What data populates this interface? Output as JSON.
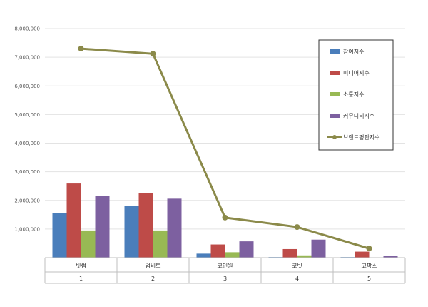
{
  "chart_data": {
    "type": "bar",
    "categories": [
      "빗썸",
      "업비트",
      "코인원",
      "코빗",
      "고팍스"
    ],
    "category_index": [
      "1",
      "2",
      "3",
      "4",
      "5"
    ],
    "ylim": [
      0,
      8000000
    ],
    "y_ticks": [
      0,
      1000000,
      2000000,
      3000000,
      4000000,
      5000000,
      6000000,
      7000000,
      8000000
    ],
    "y_tick_labels": [
      "-",
      "1,000,000",
      "2,000,000",
      "3,000,000",
      "4,000,000",
      "5,000,000",
      "6,000,000",
      "7,000,000",
      "8,000,000"
    ],
    "grid": true,
    "legend_position": "top-right",
    "series": [
      {
        "name": "참여지수",
        "type": "bar",
        "color": "#4a7ebb",
        "values": [
          1570000,
          1810000,
          140000,
          20000,
          20000
        ]
      },
      {
        "name": "미디어지수",
        "type": "bar",
        "color": "#be4b48",
        "values": [
          2590000,
          2260000,
          460000,
          300000,
          210000
        ]
      },
      {
        "name": "소통지수",
        "type": "bar",
        "color": "#98b954",
        "values": [
          950000,
          950000,
          190000,
          80000,
          10000
        ]
      },
      {
        "name": "커뮤니티지수",
        "type": "bar",
        "color": "#7d60a0",
        "values": [
          2160000,
          2060000,
          570000,
          630000,
          60000
        ]
      },
      {
        "name": "브랜드평판지수",
        "type": "line",
        "color": "#8b8a4a",
        "values": [
          7300000,
          7120000,
          1400000,
          1070000,
          320000
        ]
      }
    ]
  }
}
